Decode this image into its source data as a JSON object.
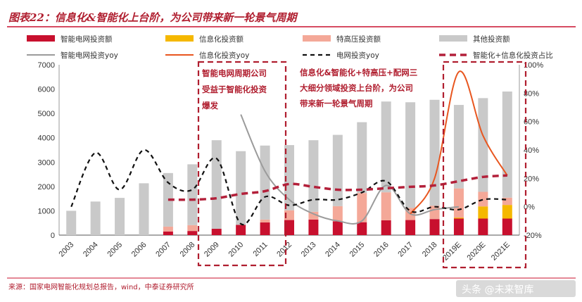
{
  "title": "图表22：信息化&智能化上台阶，为公司带来新一轮景气周期",
  "source": "来源：国家电网智能化规划总报告，wind，中泰证券研究所",
  "watermark": "头条 @未来智库",
  "colors": {
    "title": "#b01e2f",
    "smart_grid": "#c8102e",
    "informatization": "#f5b800",
    "uhv": "#f4a898",
    "other": "#c9c9c9",
    "smart_yoy": "#9b9b9b",
    "info_yoy": "#e8561f",
    "grid_yoy": "#111111",
    "share": "#b3203a",
    "highlight_box": "#b01e2f",
    "rule": "#c8102e"
  },
  "legend": {
    "smart_grid": "智能电网投资额",
    "informatization": "信息化投资额",
    "uhv": "特高压投资额",
    "other": "其他投资额",
    "smart_yoy": "智能电网投资yoy",
    "info_yoy": "信息化投资yoy",
    "grid_yoy": "电网投资yoy",
    "share": "智能化+信息化投资占比"
  },
  "annotations": {
    "box1_lines": [
      "智能电网周期公司",
      "受益于智能化投资",
      "爆发"
    ],
    "box2_lines": [
      "信息化&智能化+特高压+配网三",
      "大细分领域投资上台阶，为公司",
      "带来新一轮景气周期"
    ]
  },
  "chart_data": {
    "type": "bar",
    "stacked": true,
    "categories": [
      "2003",
      "2004",
      "2005",
      "2006",
      "2007",
      "2008",
      "2009",
      "2010",
      "2011",
      "2012",
      "2013",
      "2014",
      "2015",
      "2016",
      "2017",
      "2018",
      "2019E",
      "2020E",
      "2021E"
    ],
    "ylim": [
      0,
      7000
    ],
    "yticks": [
      0,
      1000,
      2000,
      3000,
      4000,
      5000,
      6000,
      7000
    ],
    "y2lim": [
      -20,
      100
    ],
    "y2ticks": [
      "-20%",
      "0%",
      "20%",
      "40%",
      "60%",
      "80%",
      "100%"
    ],
    "y2tick_values": [
      -20,
      0,
      20,
      40,
      60,
      80,
      100
    ],
    "series": [
      {
        "name": "智能电网投资额",
        "kind": "bar",
        "values": [
          null,
          null,
          null,
          null,
          150,
          170,
          260,
          420,
          520,
          620,
          640,
          570,
          530,
          610,
          620,
          660,
          680,
          680,
          680
        ]
      },
      {
        "name": "信息化投资额",
        "kind": "bar",
        "values": [
          0,
          0,
          0,
          0,
          0,
          0,
          0,
          0,
          0,
          0,
          0,
          0,
          0,
          0,
          0,
          0,
          40,
          500,
          560
        ]
      },
      {
        "name": "特高压投资额",
        "kind": "bar",
        "values": [
          0,
          0,
          0,
          0,
          200,
          240,
          0,
          0,
          120,
          400,
          320,
          620,
          1200,
          1150,
          500,
          550,
          1200,
          600,
          300
        ]
      },
      {
        "name": "其他投资额",
        "kind": "bar",
        "values": [
          1000,
          1380,
          1530,
          2130,
          2200,
          2500,
          3640,
          3030,
          3040,
          2680,
          2940,
          2930,
          2910,
          3730,
          4340,
          4350,
          3430,
          3850,
          4360
        ]
      },
      {
        "name": "智能电网投资yoy",
        "kind": "line",
        "axis": "right",
        "values": [
          null,
          null,
          null,
          null,
          null,
          null,
          null,
          65,
          25,
          5,
          -5,
          -10,
          -10,
          15,
          -5,
          -2,
          0,
          null,
          null
        ]
      },
      {
        "name": "信息化投资yoy",
        "kind": "line",
        "axis": "right",
        "values": [
          null,
          null,
          null,
          null,
          null,
          null,
          null,
          null,
          null,
          null,
          null,
          null,
          null,
          null,
          -5,
          20,
          95,
          50,
          22
        ]
      },
      {
        "name": "电网投资yoy",
        "kind": "line",
        "axis": "right",
        "values": [
          0,
          38,
          12,
          40,
          17,
          12,
          34,
          -12,
          7,
          1,
          5,
          5,
          10,
          18,
          -3,
          0,
          -2,
          5,
          5
        ]
      },
      {
        "name": "智能化+信息化投资占比",
        "kind": "line",
        "axis": "right",
        "values": [
          null,
          null,
          null,
          null,
          5,
          5,
          6,
          9,
          11,
          16,
          14,
          12,
          12,
          13,
          14,
          15,
          18,
          21,
          22
        ]
      }
    ]
  }
}
